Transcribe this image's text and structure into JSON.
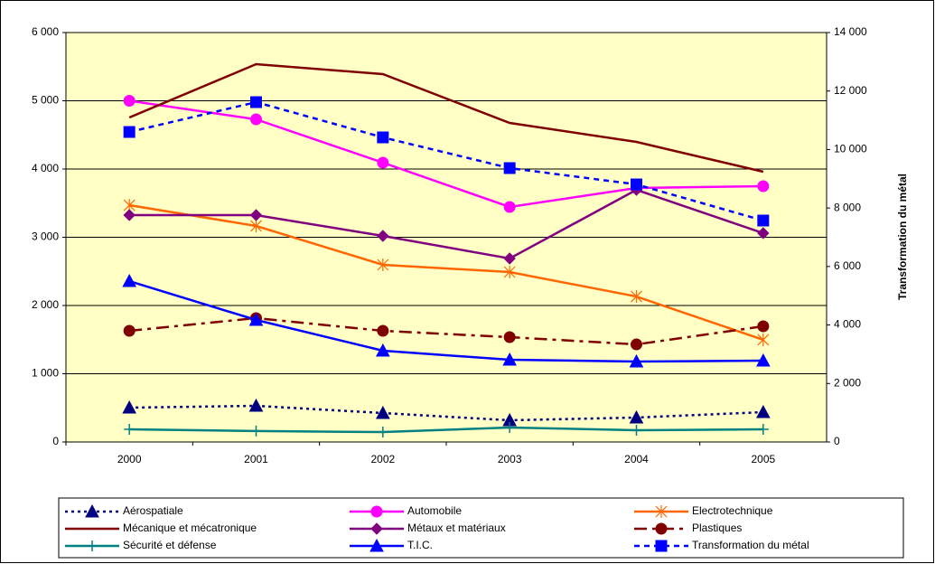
{
  "chart_data": {
    "type": "line",
    "categories": [
      "2000",
      "2001",
      "2002",
      "2003",
      "2004",
      "2005"
    ],
    "ylim": [
      0,
      6000
    ],
    "yticks": [
      0,
      {
        "value": 1000,
        "label": "1 000"
      },
      {
        "value": 2000,
        "label": "2 000"
      },
      {
        "value": 3000,
        "label": "3 000"
      },
      {
        "value": 4000,
        "label": "4 000"
      },
      {
        "value": 5000,
        "label": "5 000"
      },
      {
        "value": 6000,
        "label": "6 000"
      }
    ],
    "y2lim": [
      0,
      14000
    ],
    "y2ticks": [
      0,
      {
        "value": 2000,
        "label": "2 000"
      },
      {
        "value": 4000,
        "label": "4 000"
      },
      {
        "value": 6000,
        "label": "6 000"
      },
      {
        "value": 8000,
        "label": "8 000"
      },
      {
        "value": 10000,
        "label": "10 000"
      },
      {
        "value": 12000,
        "label": "12 000"
      },
      {
        "value": 14000,
        "label": "14 000"
      }
    ],
    "y2label": "Transformation du métal",
    "grid": true,
    "legend": "bottom",
    "series": [
      {
        "name": "Aérospatiale",
        "color": "#000080",
        "dash": "dotted",
        "marker": "triangle",
        "values": [
          503,
          530,
          424,
          318,
          358,
          437
        ]
      },
      {
        "name": "Automobile",
        "color": "#FF00FF",
        "dash": "solid",
        "marker": "circle",
        "values": [
          5000,
          4728,
          4093,
          3444,
          3722,
          3748
        ]
      },
      {
        "name": "Electrotechnique",
        "color": "#FF6600",
        "dash": "solid",
        "marker": "star",
        "values": [
          3470,
          3166,
          2596,
          2490,
          2132,
          1497
        ]
      },
      {
        "name": "Mécanique et mécatronique",
        "color": "#800000",
        "dash": "solid",
        "marker": "none",
        "values": [
          4755,
          5536,
          5391,
          4675,
          4397,
          3960
        ]
      },
      {
        "name": "Métaux et matériaux",
        "color": "#800080",
        "dash": "solid",
        "marker": "diamond",
        "values": [
          3325,
          3325,
          3020,
          2689,
          3695,
          3060
        ]
      },
      {
        "name": "Plastiques",
        "color": "#800000",
        "dash": "dashdot",
        "marker": "circle",
        "values": [
          1629,
          1815,
          1629,
          1536,
          1430,
          1695
        ]
      },
      {
        "name": "Sécurité et défense",
        "color": "#008080",
        "dash": "solid",
        "marker": "plus",
        "values": [
          185,
          160,
          145,
          212,
          172,
          185
        ]
      },
      {
        "name": "T.I.C.",
        "color": "#0000FF",
        "dash": "solid",
        "marker": "triangle",
        "values": [
          2357,
          1788,
          1338,
          1205,
          1179,
          1192
        ]
      },
      {
        "name": "Transformation du métal",
        "color": "#0000FF",
        "dash": "dashed",
        "marker": "square",
        "axis": "y2",
        "values": [
          10600,
          11620,
          10415,
          9365,
          8807,
          7572
        ]
      }
    ]
  }
}
